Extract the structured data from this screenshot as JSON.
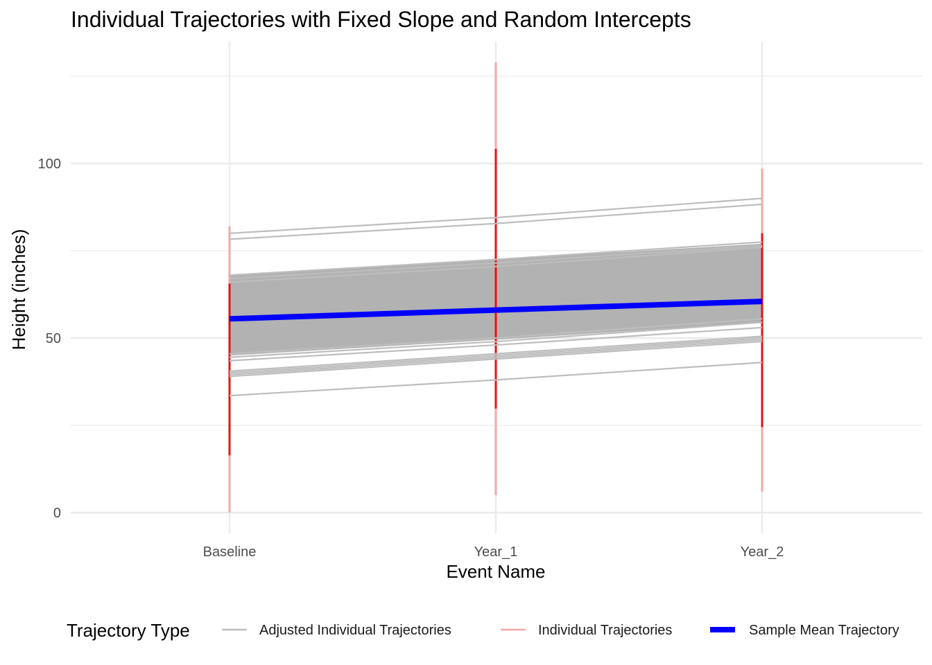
{
  "chart_data": {
    "type": "line",
    "title": "Individual Trajectories with Fixed Slope and Random Intercepts",
    "xlabel": "Event Name",
    "ylabel": "Height (inches)",
    "categories": [
      "Baseline",
      "Year_1",
      "Year_2"
    ],
    "yticks": [
      0,
      50,
      100
    ],
    "ylim": [
      -5,
      133
    ],
    "grid": true,
    "legend": {
      "title": "Trajectory Type",
      "position": "bottom",
      "entries": [
        {
          "label": "Adjusted Individual Trajectories",
          "color": "#bdbdbd"
        },
        {
          "label": "Individual Trajectories",
          "color": "#f4a6a6"
        },
        {
          "label": "Sample Mean Trajectory",
          "color": "#0000ff"
        }
      ]
    },
    "series": [
      {
        "name": "Sample Mean Trajectory",
        "values": [
          55.5,
          58,
          60.5
        ]
      },
      {
        "name": "Adjusted Individual Trajectories",
        "band": {
          "low": [
            45,
            49.5,
            54.5
          ],
          "high": [
            68,
            72.5,
            77
          ]
        },
        "values_list": [
          [
            80,
            84.5,
            90
          ],
          [
            78.3,
            82.8,
            88.3
          ],
          [
            68,
            72.5,
            77.5
          ],
          [
            67,
            71.5,
            76.5
          ],
          [
            66,
            70.5,
            76
          ],
          [
            45.5,
            50,
            55.5
          ],
          [
            44.5,
            49,
            54.5
          ],
          [
            43.5,
            48,
            53
          ],
          [
            40.5,
            45.5,
            50.5
          ],
          [
            40,
            45,
            50
          ],
          [
            39.5,
            44.5,
            49.5
          ],
          [
            39,
            44,
            49
          ],
          [
            33.5,
            38,
            43
          ]
        ]
      },
      {
        "name": "Individual Trajectories",
        "ranges": [
          [
            0,
            82
          ],
          [
            5,
            129
          ],
          [
            6,
            98.5
          ]
        ]
      }
    ],
    "colors": {
      "adjusted": "#bdbdbd",
      "band": "#b2b2b2",
      "individual": "#e81010",
      "mean": "#0000ff",
      "grid": "#ebebeb"
    }
  }
}
